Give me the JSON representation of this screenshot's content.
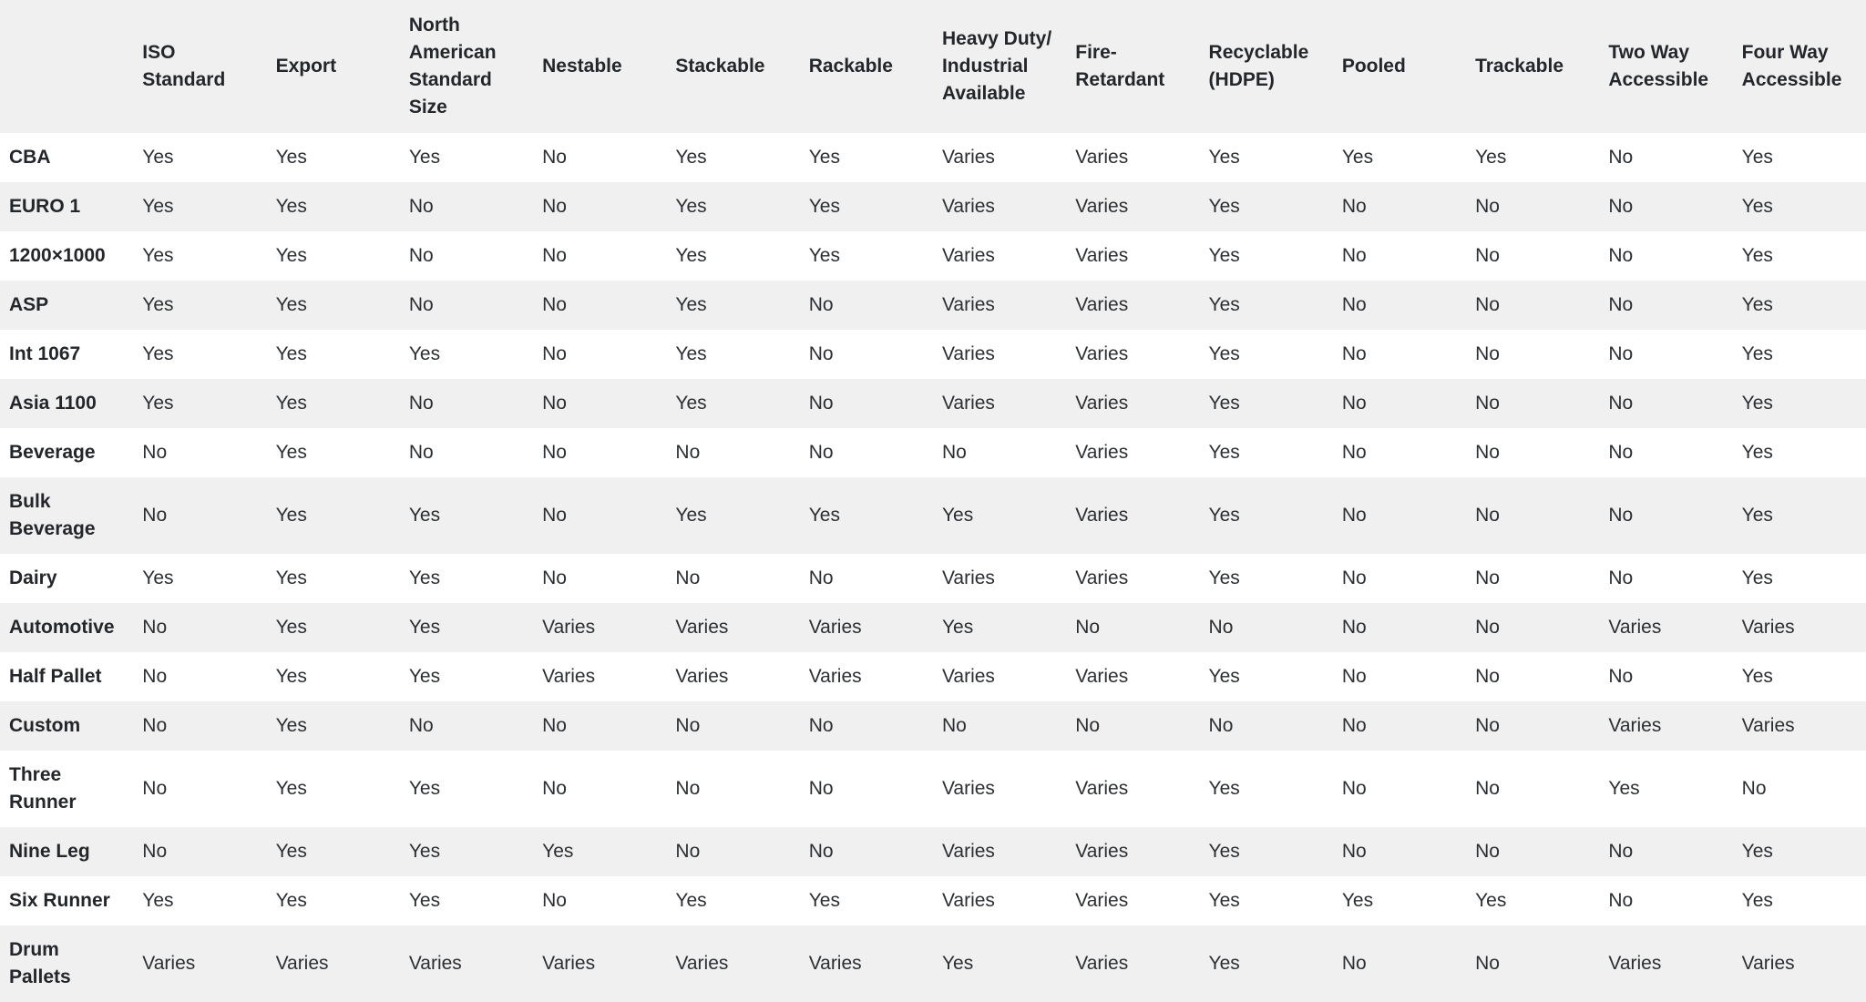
{
  "table": {
    "columns": [
      "",
      "ISO Standard",
      "Export",
      "North American Standard Size",
      "Nestable",
      "Stackable",
      "Rackable",
      "Heavy Duty/ Industrial Available",
      "Fire-Retardant",
      "Recyclable (HDPE)",
      "Pooled",
      "Trackable",
      "Two Way Accessible",
      "Four Way Accessible"
    ],
    "rows": [
      {
        "name": "CBA",
        "values": [
          "Yes",
          "Yes",
          "Yes",
          "No",
          "Yes",
          "Yes",
          "Varies",
          "Varies",
          "Yes",
          "Yes",
          "Yes",
          "No",
          "Yes"
        ]
      },
      {
        "name": "EURO 1",
        "values": [
          "Yes",
          "Yes",
          "No",
          "No",
          "Yes",
          "Yes",
          "Varies",
          "Varies",
          "Yes",
          "No",
          "No",
          "No",
          "Yes"
        ]
      },
      {
        "name": "1200×1000",
        "values": [
          "Yes",
          "Yes",
          "No",
          "No",
          "Yes",
          "Yes",
          "Varies",
          "Varies",
          "Yes",
          "No",
          "No",
          "No",
          "Yes"
        ]
      },
      {
        "name": "ASP",
        "values": [
          "Yes",
          "Yes",
          "No",
          "No",
          "Yes",
          "No",
          "Varies",
          "Varies",
          "Yes",
          "No",
          "No",
          "No",
          "Yes"
        ]
      },
      {
        "name": "Int 1067",
        "values": [
          "Yes",
          "Yes",
          "Yes",
          "No",
          "Yes",
          "No",
          "Varies",
          "Varies",
          "Yes",
          "No",
          "No",
          "No",
          "Yes"
        ]
      },
      {
        "name": "Asia 1100",
        "values": [
          "Yes",
          "Yes",
          "No",
          "No",
          "Yes",
          "No",
          "Varies",
          "Varies",
          "Yes",
          "No",
          "No",
          "No",
          "Yes"
        ]
      },
      {
        "name": "Beverage",
        "values": [
          "No",
          "Yes",
          "No",
          "No",
          "No",
          "No",
          "No",
          "Varies",
          "Yes",
          "No",
          "No",
          "No",
          "Yes"
        ]
      },
      {
        "name": "Bulk Beverage",
        "values": [
          "No",
          "Yes",
          "Yes",
          "No",
          "Yes",
          "Yes",
          "Yes",
          "Varies",
          "Yes",
          "No",
          "No",
          "No",
          "Yes"
        ]
      },
      {
        "name": "Dairy",
        "values": [
          "Yes",
          "Yes",
          "Yes",
          "No",
          "No",
          "No",
          "Varies",
          "Varies",
          "Yes",
          "No",
          "No",
          "No",
          "Yes"
        ]
      },
      {
        "name": "Automotive",
        "values": [
          "No",
          "Yes",
          "Yes",
          "Varies",
          "Varies",
          "Varies",
          "Yes",
          "No",
          "No",
          "No",
          "No",
          "Varies",
          "Varies"
        ]
      },
      {
        "name": "Half Pallet",
        "values": [
          "No",
          "Yes",
          "Yes",
          "Varies",
          "Varies",
          "Varies",
          "Varies",
          "Varies",
          "Yes",
          "No",
          "No",
          "No",
          "Yes"
        ]
      },
      {
        "name": "Custom",
        "values": [
          "No",
          "Yes",
          "No",
          "No",
          "No",
          "No",
          "No",
          "No",
          "No",
          "No",
          "No",
          "Varies",
          "Varies"
        ]
      },
      {
        "name": "Three Runner",
        "values": [
          "No",
          "Yes",
          "Yes",
          "No",
          "No",
          "No",
          "Varies",
          "Varies",
          "Yes",
          "No",
          "No",
          "Yes",
          "No"
        ]
      },
      {
        "name": "Nine Leg",
        "values": [
          "No",
          "Yes",
          "Yes",
          "Yes",
          "No",
          "No",
          "Varies",
          "Varies",
          "Yes",
          "No",
          "No",
          "No",
          "Yes"
        ]
      },
      {
        "name": "Six Runner",
        "values": [
          "Yes",
          "Yes",
          "Yes",
          "No",
          "Yes",
          "Yes",
          "Varies",
          "Varies",
          "Yes",
          "Yes",
          "Yes",
          "No",
          "Yes"
        ]
      },
      {
        "name": "Drum Pallets",
        "values": [
          "Varies",
          "Varies",
          "Varies",
          "Varies",
          "Varies",
          "Varies",
          "Yes",
          "Varies",
          "Yes",
          "No",
          "No",
          "Varies",
          "Varies"
        ]
      }
    ]
  },
  "colors": {
    "header_bg": "#f0f0f0",
    "stripe_bg": "#f0f0f0",
    "text": "#2b2f33"
  }
}
